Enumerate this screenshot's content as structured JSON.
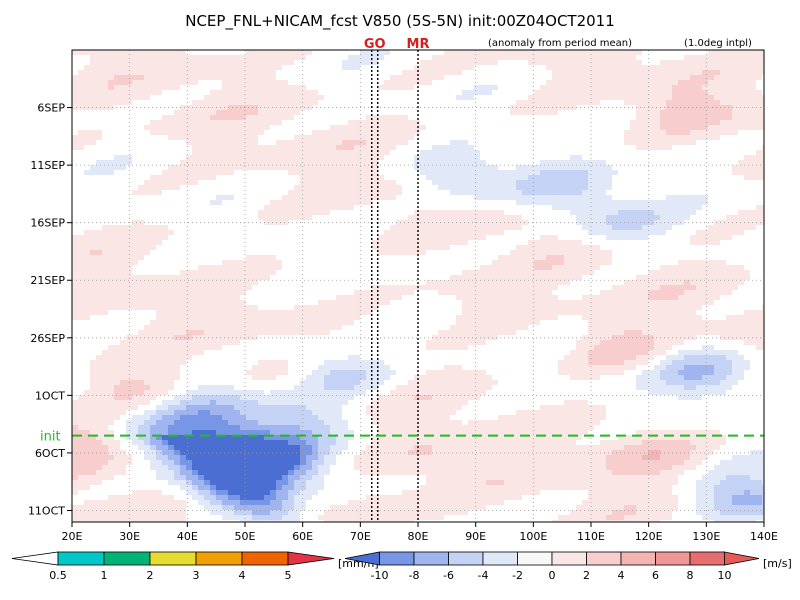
{
  "chart_data": {
    "type": "heatmap",
    "title": "NCEP_FNL+NICAM_fcst V850 (5S-5N) init:00Z04OCT2011",
    "subtitle": "(anomaly from period mean)",
    "note": "(1.0deg intpl)",
    "markers": [
      {
        "label": "GO",
        "x": 72.5,
        "color": "#d62020"
      },
      {
        "label": "MR",
        "x": 80,
        "color": "#d62020"
      }
    ],
    "init_label": "init",
    "init_day": 33.5,
    "xlim": [
      20,
      140
    ],
    "ylim": [
      0,
      41
    ],
    "x_ticks": [
      {
        "value": 20,
        "label": "20E"
      },
      {
        "value": 30,
        "label": "30E"
      },
      {
        "value": 40,
        "label": "40E"
      },
      {
        "value": 50,
        "label": "50E"
      },
      {
        "value": 60,
        "label": "60E"
      },
      {
        "value": 70,
        "label": "70E"
      },
      {
        "value": 80,
        "label": "80E"
      },
      {
        "value": 90,
        "label": "90E"
      },
      {
        "value": 100,
        "label": "100E"
      },
      {
        "value": 110,
        "label": "110E"
      },
      {
        "value": 120,
        "label": "120E"
      },
      {
        "value": 130,
        "label": "130E"
      },
      {
        "value": 140,
        "label": "140E"
      }
    ],
    "y_ticks": [
      {
        "day": 5,
        "label": "6SEP"
      },
      {
        "day": 10,
        "label": "11SEP"
      },
      {
        "day": 15,
        "label": "16SEP"
      },
      {
        "day": 20,
        "label": "21SEP"
      },
      {
        "day": 25,
        "label": "26SEP"
      },
      {
        "day": 30,
        "label": "1OCT"
      },
      {
        "day": 35,
        "label": "6OCT"
      },
      {
        "day": 40,
        "label": "11OCT"
      }
    ],
    "features": [
      {
        "x": 48,
        "y": 37.5,
        "value": -9
      },
      {
        "x": 55,
        "y": 35.5,
        "value": -8
      },
      {
        "x": 47,
        "y": 34.5,
        "value": -7
      },
      {
        "x": 38,
        "y": 33.5,
        "value": -5
      },
      {
        "x": 60,
        "y": 32,
        "value": -4
      },
      {
        "x": 66,
        "y": 28,
        "value": -5
      },
      {
        "x": 45,
        "y": 31,
        "value": -4
      },
      {
        "x": 88,
        "y": 11,
        "value": -5
      },
      {
        "x": 105,
        "y": 12,
        "value": -4
      },
      {
        "x": 115,
        "y": 15,
        "value": -4
      },
      {
        "x": 130,
        "y": 28,
        "value": -6
      },
      {
        "x": 137,
        "y": 39,
        "value": -7
      },
      {
        "x": 22,
        "y": 34.5,
        "value": 3
      },
      {
        "x": 30,
        "y": 29,
        "value": 3
      },
      {
        "x": 76,
        "y": 40,
        "value": 2
      },
      {
        "x": 84,
        "y": 36,
        "value": 2
      },
      {
        "x": 115,
        "y": 26,
        "value": 3
      },
      {
        "x": 120,
        "y": 35,
        "value": 3
      },
      {
        "x": 125,
        "y": 5,
        "value": 2
      },
      {
        "x": 90,
        "y": 22,
        "value": 2
      }
    ],
    "colorbar_rain": {
      "colors": [
        "#ffffff",
        "#00c8c8",
        "#00b478",
        "#e6dc32",
        "#f0a000",
        "#f06400",
        "#e63246"
      ],
      "labels": [
        "0.5",
        "1",
        "2",
        "3",
        "4",
        "5"
      ],
      "unit": "[mm/h]"
    },
    "colorbar_wind": {
      "colors": [
        "#4b6ed2",
        "#7896e6",
        "#a0b4f0",
        "#c3d2f5",
        "#e1e8f8",
        "#f8f8f8",
        "#fbe6e6",
        "#f8cdcd",
        "#f5b4b4",
        "#f09696",
        "#e66e6e",
        "#e65a5a"
      ],
      "labels": [
        "-10",
        "-8",
        "-6",
        "-4",
        "-2",
        "0",
        "2",
        "4",
        "6",
        "8",
        "10"
      ],
      "unit": "[m/s]"
    }
  }
}
